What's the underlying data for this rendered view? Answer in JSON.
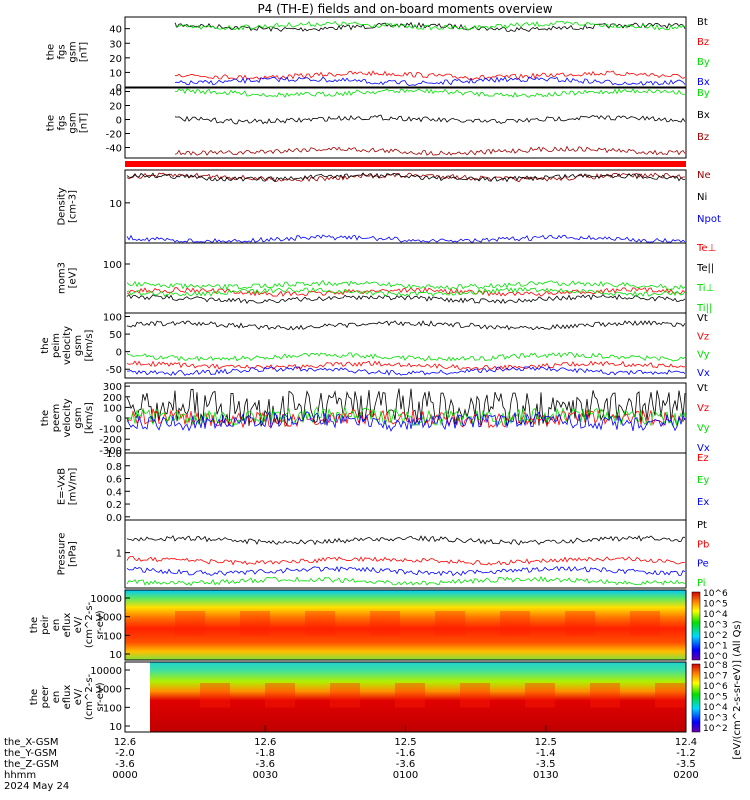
{
  "title": "P4 (TH-E) fields and on-board moments overview",
  "colors": {
    "black": "#000000",
    "red": "#ff0000",
    "green": "#00e000",
    "blue": "#0000ff",
    "darkred": "#a00000"
  },
  "chart_data": {
    "type": "line",
    "title": "P4 (TH-E) fields and on-board moments overview",
    "xaxis": {
      "ticks": [
        "0000",
        "0030",
        "0100",
        "0130",
        "0200"
      ],
      "rows": [
        {
          "label": "the_X-GSM",
          "values": [
            "12.6",
            "12.6",
            "12.5",
            "12.5",
            "12.4"
          ]
        },
        {
          "label": "the_Y-GSM",
          "values": [
            "-2.0",
            "-1.8",
            "-1.6",
            "-1.4",
            "-1.2"
          ]
        },
        {
          "label": "the_Z-GSM",
          "values": [
            "-3.6",
            "-3.6",
            "-3.6",
            "-3.5",
            "-3.5"
          ]
        },
        {
          "label": "hhmm",
          "values": [
            "0000",
            "0030",
            "0100",
            "0130",
            "0200"
          ]
        }
      ],
      "date": "2024 May 24"
    },
    "panels": [
      {
        "id": "fgs-mag",
        "ylabel": [
          "the",
          "fgs",
          "gsm",
          "[nT]"
        ],
        "ylim": [
          0,
          48
        ],
        "yticks": [
          "0",
          "10",
          "20",
          "30",
          "40"
        ],
        "yticks_num": [
          0,
          10,
          20,
          30,
          40
        ],
        "series": [
          {
            "name": "Bt",
            "color": "#000000",
            "level": 41
          },
          {
            "name": "Bz",
            "color": "#ff0000",
            "level": 8
          },
          {
            "name": "By",
            "color": "#00e000",
            "level": 42
          },
          {
            "name": "Bx",
            "color": "#0000ff",
            "level": 4
          }
        ]
      },
      {
        "id": "fgs",
        "ylabel": [
          "the",
          "fgs",
          "gsm",
          "[nT]"
        ],
        "ylim": [
          -55,
          45
        ],
        "yticks": [
          "-40",
          "-20",
          "0",
          "20",
          "40"
        ],
        "yticks_num": [
          -40,
          -20,
          0,
          20,
          40
        ],
        "series": [
          {
            "name": "By",
            "color": "#00e000",
            "level": 38
          },
          {
            "name": "Bx",
            "color": "#000000",
            "level": 0
          },
          {
            "name": "Bz",
            "color": "#a00000",
            "level": -45
          }
        ]
      },
      {
        "id": "density",
        "ylabel": [
          "Density",
          "[cm-3]"
        ],
        "ylim": [
          0,
          100
        ],
        "yticks": [
          "10"
        ],
        "yticks_num": [
          55
        ],
        "series": [
          {
            "name": "Ne",
            "color": "#a00000",
            "level": 90
          },
          {
            "name": "Ni",
            "color": "#000000",
            "level": 90
          },
          {
            "name": "Npot",
            "color": "#0000ff",
            "level": 5
          }
        ]
      },
      {
        "id": "temp",
        "ylabel": [
          "mom3",
          "[eV]"
        ],
        "ylim": [
          0,
          100
        ],
        "yticks": [
          "100"
        ],
        "yticks_num": [
          70
        ],
        "series": [
          {
            "name": "Te⊥",
            "color": "#ff0000",
            "level": 30
          },
          {
            "name": "Te||",
            "color": "#000000",
            "level": 20
          },
          {
            "name": "Ti⊥",
            "color": "#00e000",
            "level": 40
          },
          {
            "name": "Ti||",
            "color": "#00e000",
            "level": 30
          }
        ]
      },
      {
        "id": "peim-velocity",
        "ylabel": [
          "the",
          "peim",
          "velocity",
          "gsm",
          "[km/s]"
        ],
        "ylim": [
          -75,
          110
        ],
        "yticks": [
          "-50",
          "0",
          "50",
          "100"
        ],
        "yticks_num": [
          -50,
          0,
          50,
          100
        ],
        "series": [
          {
            "name": "Vt",
            "color": "#000000",
            "level": 75
          },
          {
            "name": "Vz",
            "color": "#ff0000",
            "level": -40
          },
          {
            "name": "Vy",
            "color": "#00e000",
            "level": -15
          },
          {
            "name": "Vx",
            "color": "#0000ff",
            "level": -55
          }
        ]
      },
      {
        "id": "peem-velocity",
        "ylabel": [
          "the",
          "peem",
          "velocity",
          "gsm",
          "[km/s]"
        ],
        "ylim": [
          -330,
          330
        ],
        "yticks": [
          "-300",
          "-200",
          "-100",
          "0",
          "100",
          "200",
          "300"
        ],
        "yticks_num": [
          -300,
          -200,
          -100,
          0,
          100,
          200,
          300
        ],
        "series": [
          {
            "name": "Vt",
            "color": "#000000",
            "level": 100
          },
          {
            "name": "Vz",
            "color": "#ff0000",
            "level": 0
          },
          {
            "name": "Vy",
            "color": "#00e000",
            "level": 10
          },
          {
            "name": "Vx",
            "color": "#0000ff",
            "level": -30
          }
        ]
      },
      {
        "id": "e-field",
        "ylabel": [
          "E=-VxB",
          "[mV/m]"
        ],
        "ylim": [
          -0.05,
          1.0
        ],
        "yticks": [
          "0.0",
          "0.2",
          "0.4",
          "0.6",
          "0.8",
          "1.0"
        ],
        "yticks_num": [
          0,
          0.2,
          0.4,
          0.6,
          0.8,
          1.0
        ],
        "series": [
          {
            "name": "Ez",
            "color": "#ff0000"
          },
          {
            "name": "Ey",
            "color": "#00e000"
          },
          {
            "name": "Ex",
            "color": "#0000ff"
          }
        ]
      },
      {
        "id": "pressure",
        "ylabel": [
          "Pressure",
          "[nPa]"
        ],
        "ylim": [
          0,
          100
        ],
        "yticks": [
          "1"
        ],
        "yticks_num": [
          52
        ],
        "series": [
          {
            "name": "Pt",
            "color": "#000000",
            "level": 70
          },
          {
            "name": "Pb",
            "color": "#ff0000",
            "level": 40
          },
          {
            "name": "Pe",
            "color": "#0000ff",
            "level": 25
          },
          {
            "name": "Pi",
            "color": "#00e000",
            "level": 10
          }
        ]
      },
      {
        "id": "peir-spec",
        "type": "heatmap",
        "ylabel": [
          "the",
          "peir",
          "en",
          "eflux",
          "eV/",
          "(cm^2-s-",
          "sr-eV)"
        ],
        "yticks": [
          "10",
          "100",
          "1000",
          "10000"
        ]
      },
      {
        "id": "peer-spec",
        "type": "heatmap",
        "ylabel": [
          "the",
          "peer",
          "en",
          "eflux",
          "eV/",
          "(cm^2-s-",
          "sr-eV)"
        ],
        "yticks": [
          "10",
          "100",
          "1000",
          "10000"
        ]
      }
    ],
    "colorbar": {
      "ticks1": [
        "10^6",
        "10^5",
        "10^4",
        "10^3",
        "10^2",
        "10^1",
        "10^0"
      ],
      "ticks2": [
        "10^8",
        "10^7",
        "10^6",
        "10^5",
        "10^4",
        "10^3",
        "10^2"
      ],
      "label": "[eV/(cm^2-s-sr-eV)] (All Qs)"
    }
  }
}
